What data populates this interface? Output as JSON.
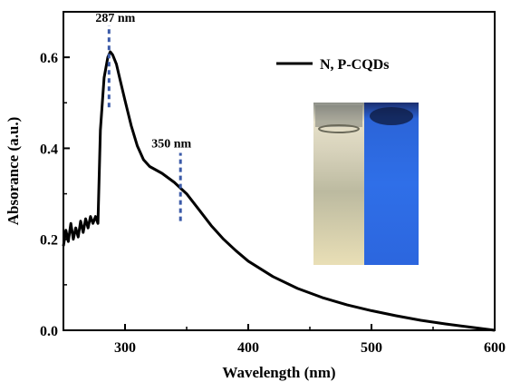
{
  "chart_data": {
    "type": "line",
    "title": "",
    "xlabel": "Wavelength (nm)",
    "ylabel": "Absorance (a.u.)",
    "xlim": [
      250,
      600
    ],
    "ylim": [
      0.0,
      0.7
    ],
    "x_ticks": [
      300,
      400,
      500,
      600
    ],
    "x_tick_labels": [
      "300",
      "400",
      "500",
      "600"
    ],
    "y_ticks": [
      0.0,
      0.2,
      0.4,
      0.6
    ],
    "y_tick_labels": [
      "0.0",
      "0.2",
      "0.4",
      "0.6"
    ],
    "grid": false,
    "legend_position": "top-right",
    "series": [
      {
        "name": "N, P-CQDs",
        "color": "#000000",
        "x": [
          250,
          252,
          254,
          256,
          258,
          260,
          262,
          264,
          266,
          268,
          270,
          272,
          274,
          276,
          278,
          280,
          283,
          286,
          288,
          290,
          293,
          296,
          300,
          305,
          310,
          315,
          320,
          330,
          340,
          350,
          360,
          370,
          380,
          390,
          400,
          420,
          440,
          460,
          480,
          500,
          520,
          540,
          560,
          580,
          600
        ],
        "y": [
          0.185,
          0.22,
          0.195,
          0.235,
          0.2,
          0.225,
          0.205,
          0.24,
          0.215,
          0.245,
          0.225,
          0.25,
          0.235,
          0.25,
          0.235,
          0.44,
          0.555,
          0.6,
          0.612,
          0.605,
          0.585,
          0.55,
          0.505,
          0.45,
          0.405,
          0.375,
          0.36,
          0.345,
          0.325,
          0.3,
          0.265,
          0.23,
          0.2,
          0.175,
          0.152,
          0.118,
          0.092,
          0.072,
          0.056,
          0.043,
          0.032,
          0.022,
          0.014,
          0.007,
          0.0
        ]
      }
    ],
    "annotations": [
      {
        "text": "287 nm",
        "x": 287,
        "line_y": [
          0.49,
          0.67
        ],
        "color": "#3b5aa8"
      },
      {
        "text": "350 nm",
        "x": 345,
        "line_y": [
          0.24,
          0.39
        ],
        "color": "#3b5aa8"
      }
    ],
    "inset_image": {
      "description_colors": {
        "left_vial": "#c9c2a8",
        "right_vial": "#2e6fe6"
      }
    }
  }
}
